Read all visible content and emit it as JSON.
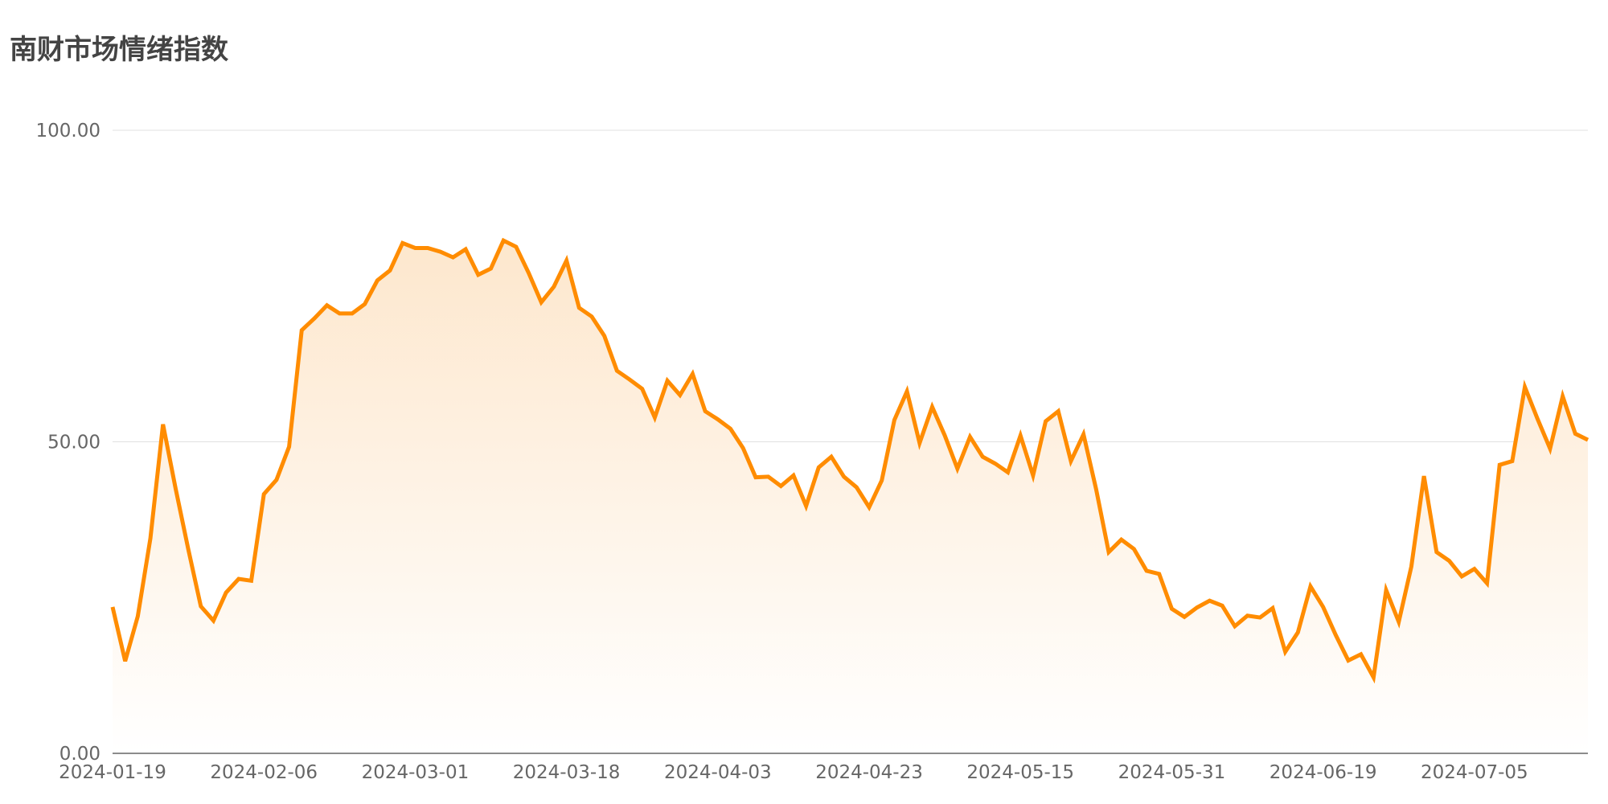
{
  "chart_data": {
    "type": "area",
    "title": "南财市场情绪指数",
    "xlabel": "",
    "ylabel": "",
    "ylim": [
      0,
      100
    ],
    "y_ticks": [
      "0.00",
      "50.00",
      "100.00"
    ],
    "x_ticks": [
      "2024-01-19",
      "2024-02-06",
      "2024-03-01",
      "2024-03-18",
      "2024-04-03",
      "2024-04-23",
      "2024-05-15",
      "2024-05-31",
      "2024-06-19",
      "2024-07-05"
    ],
    "grid": true,
    "legend": "none",
    "series": [
      {
        "values": [
          23.5,
          14.8,
          22.0,
          34.5,
          52.8,
          42.5,
          32.8,
          23.6,
          21.3,
          25.8,
          28.0,
          27.7,
          41.6,
          43.9,
          49.2,
          67.9,
          69.8,
          71.9,
          70.6,
          70.6,
          72.1,
          75.9,
          77.5,
          81.9,
          81.1,
          81.1,
          80.5,
          79.6,
          80.9,
          76.8,
          77.8,
          82.3,
          81.3,
          77.1,
          72.4,
          74.9,
          79.1,
          71.5,
          70.1,
          67.0,
          61.4,
          60.0,
          58.5,
          53.9,
          59.8,
          57.5,
          60.9,
          54.9,
          53.6,
          52.1,
          49.0,
          44.3,
          44.4,
          42.9,
          44.6,
          39.7,
          45.9,
          47.6,
          44.4,
          42.7,
          39.5,
          43.8,
          53.5,
          58.1,
          49.8,
          55.6,
          51.0,
          45.7,
          50.8,
          47.6,
          46.5,
          45.1,
          51.0,
          44.6,
          53.3,
          54.9,
          46.9,
          51.2,
          42.4,
          32.3,
          34.3,
          32.8,
          29.3,
          28.8,
          23.2,
          21.9,
          23.4,
          24.5,
          23.7,
          20.4,
          22.1,
          21.8,
          23.3,
          16.3,
          19.4,
          26.8,
          23.5,
          19.0,
          14.9,
          15.9,
          12.2,
          26.2,
          21.1,
          30.0,
          44.5,
          32.3,
          30.9,
          28.4,
          29.6,
          27.3,
          46.3,
          46.9,
          58.8,
          53.7,
          48.9,
          57.3,
          51.3,
          50.3
        ]
      }
    ],
    "colors": {
      "line": "#ff8c00",
      "area_top": "#fde7cd",
      "area_bottom": "#ffffff",
      "grid": "#e0e0e0",
      "axis": "#666666",
      "title": "#444444",
      "tick_text": "#666666"
    }
  }
}
